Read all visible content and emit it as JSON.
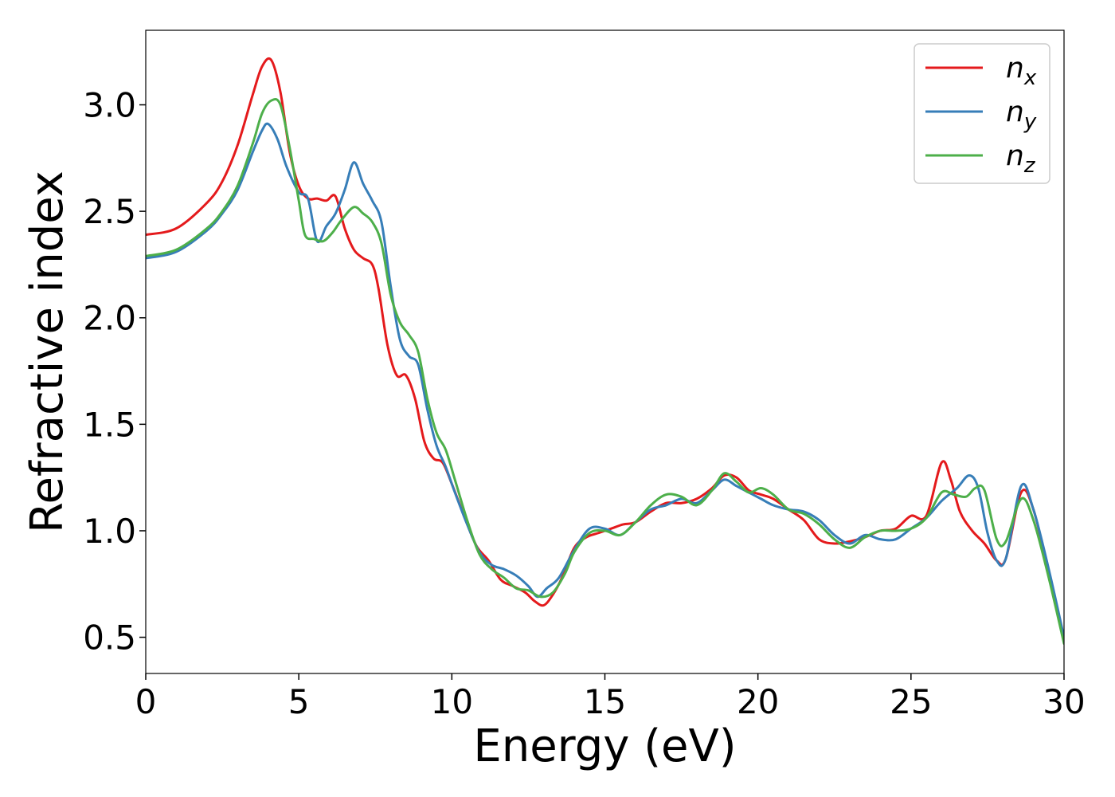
{
  "chart_data": {
    "type": "line",
    "title": "",
    "xlabel": "Energy (eV)",
    "ylabel": "Refractive index",
    "xlim": [
      0,
      30
    ],
    "ylim": [
      0.33,
      3.35
    ],
    "xticks": [
      0,
      5,
      10,
      15,
      20,
      25,
      30
    ],
    "xtick_labels": [
      "0",
      "5",
      "10",
      "15",
      "20",
      "25",
      "30"
    ],
    "yticks": [
      0.5,
      1.0,
      1.5,
      2.0,
      2.5,
      3.0
    ],
    "ytick_labels": [
      "0.5",
      "1.0",
      "1.5",
      "2.0",
      "2.5",
      "3.0"
    ],
    "grid": false,
    "legend_position": "top-right",
    "series": [
      {
        "name": "n",
        "subscript": "x",
        "color": "#e41a1c",
        "x": [
          0,
          1,
          2,
          2.5,
          3,
          3.5,
          3.8,
          4.1,
          4.4,
          4.7,
          5.0,
          5.3,
          5.6,
          5.9,
          6.2,
          6.5,
          6.8,
          7.1,
          7.4,
          7.6,
          7.9,
          8.2,
          8.5,
          8.8,
          9.1,
          9.4,
          9.7,
          10.0,
          10.4,
          10.8,
          11.2,
          11.6,
          12.0,
          12.4,
          12.7,
          13.0,
          13.3,
          13.6,
          14.0,
          14.4,
          14.8,
          15.2,
          15.6,
          16.0,
          16.5,
          17.0,
          17.5,
          18.0,
          18.5,
          18.9,
          19.3,
          19.7,
          20.1,
          20.5,
          21.0,
          21.5,
          22.0,
          22.5,
          23.0,
          23.5,
          24.0,
          24.5,
          25.0,
          25.5,
          26.0,
          26.3,
          26.6,
          27.0,
          27.4,
          27.8,
          28.1,
          28.6,
          29.0,
          29.5,
          30.0
        ],
        "values": [
          2.39,
          2.42,
          2.54,
          2.64,
          2.81,
          3.05,
          3.18,
          3.21,
          3.06,
          2.78,
          2.62,
          2.56,
          2.56,
          2.55,
          2.57,
          2.42,
          2.32,
          2.28,
          2.25,
          2.14,
          1.87,
          1.73,
          1.73,
          1.62,
          1.42,
          1.34,
          1.32,
          1.22,
          1.07,
          0.93,
          0.86,
          0.77,
          0.74,
          0.71,
          0.67,
          0.65,
          0.7,
          0.78,
          0.92,
          0.97,
          0.99,
          1.01,
          1.03,
          1.04,
          1.09,
          1.13,
          1.13,
          1.15,
          1.2,
          1.26,
          1.25,
          1.19,
          1.17,
          1.15,
          1.1,
          1.05,
          0.96,
          0.94,
          0.95,
          0.97,
          1.0,
          1.01,
          1.07,
          1.07,
          1.32,
          1.24,
          1.09,
          1.0,
          0.94,
          0.86,
          0.87,
          1.18,
          1.1,
          0.8,
          0.48
        ]
      },
      {
        "name": "n",
        "subscript": "y",
        "color": "#377eb8",
        "x": [
          0,
          1,
          2,
          2.5,
          3,
          3.5,
          3.8,
          4.0,
          4.3,
          4.6,
          5.0,
          5.3,
          5.6,
          5.9,
          6.2,
          6.5,
          6.8,
          7.1,
          7.4,
          7.7,
          8.0,
          8.3,
          8.6,
          8.9,
          9.2,
          9.5,
          9.8,
          10.1,
          10.5,
          10.9,
          11.3,
          11.7,
          12.1,
          12.5,
          12.8,
          13.1,
          13.5,
          14.0,
          14.5,
          15.0,
          15.5,
          16.0,
          16.5,
          17.0,
          17.5,
          18.0,
          18.5,
          18.9,
          19.3,
          19.7,
          20.1,
          20.5,
          21.0,
          21.5,
          22.0,
          22.5,
          23.0,
          23.5,
          24.0,
          24.5,
          25.0,
          25.5,
          26.0,
          26.5,
          26.9,
          27.2,
          27.5,
          27.8,
          28.1,
          28.6,
          29.0,
          29.5,
          30.0
        ],
        "values": [
          2.28,
          2.31,
          2.41,
          2.49,
          2.6,
          2.78,
          2.88,
          2.91,
          2.84,
          2.71,
          2.59,
          2.56,
          2.36,
          2.43,
          2.49,
          2.6,
          2.73,
          2.63,
          2.55,
          2.45,
          2.15,
          1.9,
          1.82,
          1.78,
          1.57,
          1.4,
          1.3,
          1.18,
          1.03,
          0.9,
          0.84,
          0.82,
          0.79,
          0.74,
          0.69,
          0.73,
          0.78,
          0.91,
          1.01,
          1.01,
          0.98,
          1.04,
          1.1,
          1.12,
          1.15,
          1.13,
          1.19,
          1.24,
          1.21,
          1.18,
          1.15,
          1.12,
          1.1,
          1.09,
          1.05,
          0.98,
          0.94,
          0.98,
          0.96,
          0.96,
          1.01,
          1.06,
          1.14,
          1.2,
          1.26,
          1.2,
          0.99,
          0.86,
          0.87,
          1.21,
          1.1,
          0.82,
          0.5
        ]
      },
      {
        "name": "n",
        "subscript": "z",
        "color": "#4daf4a",
        "x": [
          0,
          1,
          2,
          2.5,
          3,
          3.5,
          3.8,
          4.1,
          4.4,
          4.7,
          5.0,
          5.2,
          5.5,
          5.8,
          6.1,
          6.4,
          6.8,
          7.1,
          7.4,
          7.7,
          8.0,
          8.3,
          8.6,
          8.9,
          9.2,
          9.5,
          9.8,
          10.1,
          10.5,
          10.9,
          11.3,
          11.7,
          12.1,
          12.5,
          12.9,
          13.3,
          13.7,
          14.0,
          14.5,
          15.0,
          15.5,
          16.0,
          16.5,
          17.0,
          17.5,
          18.0,
          18.5,
          18.9,
          19.3,
          19.7,
          20.1,
          20.5,
          21.0,
          21.5,
          22.0,
          22.5,
          23.0,
          23.5,
          24.0,
          24.5,
          25.0,
          25.5,
          26.0,
          26.4,
          26.8,
          27.1,
          27.4,
          27.8,
          28.1,
          28.6,
          29.0,
          29.5,
          30.0
        ],
        "values": [
          2.29,
          2.32,
          2.42,
          2.5,
          2.62,
          2.82,
          2.96,
          3.02,
          3.0,
          2.8,
          2.55,
          2.39,
          2.37,
          2.36,
          2.4,
          2.46,
          2.52,
          2.49,
          2.45,
          2.35,
          2.11,
          1.98,
          1.92,
          1.84,
          1.62,
          1.46,
          1.38,
          1.24,
          1.05,
          0.89,
          0.82,
          0.78,
          0.73,
          0.72,
          0.69,
          0.71,
          0.8,
          0.9,
          0.99,
          1.0,
          0.98,
          1.04,
          1.12,
          1.17,
          1.16,
          1.12,
          1.19,
          1.27,
          1.23,
          1.18,
          1.2,
          1.17,
          1.1,
          1.08,
          1.03,
          0.96,
          0.92,
          0.97,
          1.0,
          1.0,
          1.01,
          1.06,
          1.18,
          1.17,
          1.16,
          1.2,
          1.19,
          0.96,
          0.95,
          1.15,
          1.05,
          0.78,
          0.47
        ]
      }
    ]
  }
}
